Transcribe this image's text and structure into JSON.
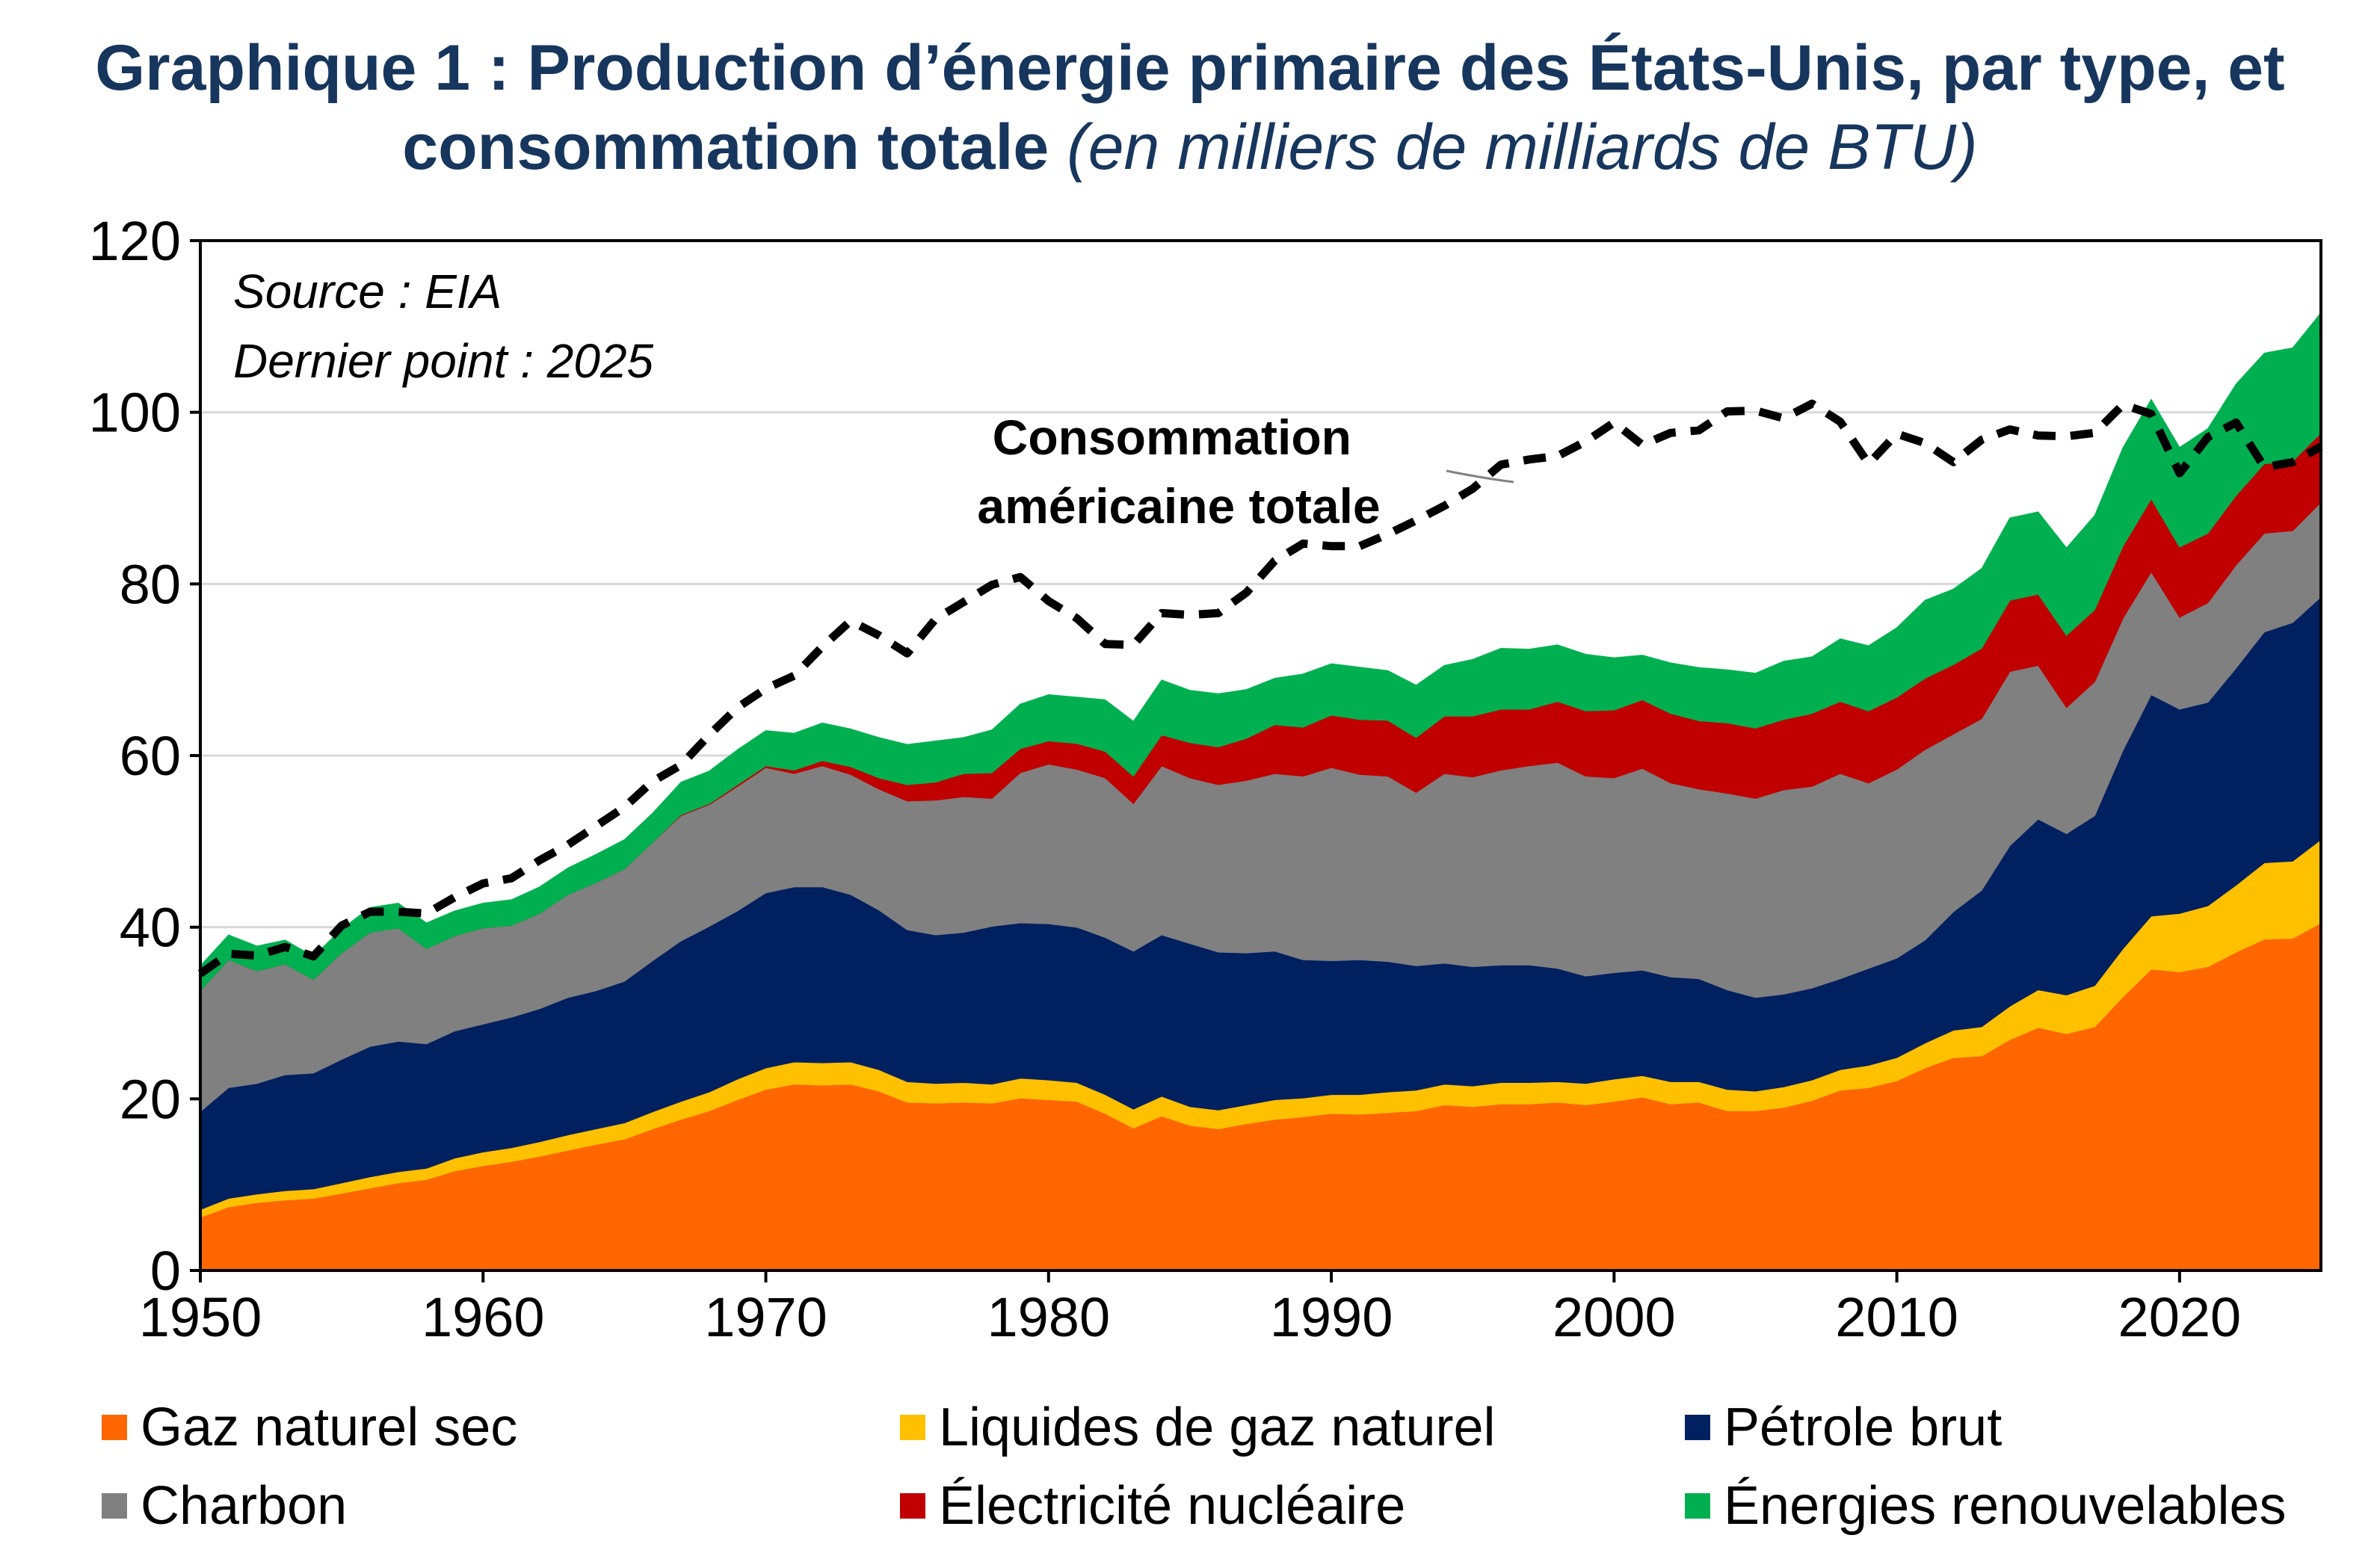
{
  "chart_data": {
    "type": "area",
    "title": "Graphique 1 : Production d’énergie primaire des États-Unis, par type, et consommation totale",
    "subtitle": "(en milliers de milliards de BTU)",
    "source_note": "Source : EIA",
    "last_point_note": "Dernier point : 2025",
    "annotation": "Consommation américaine totale",
    "xlim": [
      1950,
      2025
    ],
    "ylim": [
      0,
      120
    ],
    "x_ticks": [
      1950,
      1960,
      1970,
      1980,
      1990,
      2000,
      2010,
      2020
    ],
    "y_ticks": [
      0,
      20,
      40,
      60,
      80,
      100,
      120
    ],
    "grid": "horizontal",
    "legend_position": "bottom",
    "stacked": true,
    "x": [
      1950,
      1951,
      1952,
      1953,
      1954,
      1955,
      1956,
      1957,
      1958,
      1959,
      1960,
      1961,
      1962,
      1963,
      1964,
      1965,
      1966,
      1967,
      1968,
      1969,
      1970,
      1971,
      1972,
      1973,
      1974,
      1975,
      1976,
      1977,
      1978,
      1979,
      1980,
      1981,
      1982,
      1983,
      1984,
      1985,
      1986,
      1987,
      1988,
      1989,
      1990,
      1991,
      1992,
      1993,
      1994,
      1995,
      1996,
      1997,
      1998,
      1999,
      2000,
      2001,
      2002,
      2003,
      2004,
      2005,
      2006,
      2007,
      2008,
      2009,
      2010,
      2011,
      2012,
      2013,
      2014,
      2015,
      2016,
      2017,
      2018,
      2019,
      2020,
      2021,
      2022,
      2023,
      2024,
      2025
    ],
    "series": [
      {
        "name": "Gaz naturel sec",
        "color": "#ff6600",
        "values": [
          6.2,
          7.4,
          7.9,
          8.2,
          8.4,
          9.0,
          9.6,
          10.2,
          10.6,
          11.6,
          12.2,
          12.7,
          13.3,
          14.0,
          14.7,
          15.3,
          16.5,
          17.6,
          18.6,
          19.9,
          21.1,
          21.7,
          21.6,
          21.7,
          20.9,
          19.6,
          19.5,
          19.6,
          19.5,
          20.1,
          19.9,
          19.7,
          18.3,
          16.6,
          18.0,
          16.9,
          16.5,
          17.1,
          17.6,
          17.9,
          18.3,
          18.2,
          18.4,
          18.6,
          19.3,
          19.1,
          19.4,
          19.4,
          19.6,
          19.3,
          19.7,
          20.2,
          19.4,
          19.6,
          18.6,
          18.6,
          19.0,
          19.8,
          21.0,
          21.3,
          22.1,
          23.6,
          24.8,
          25.0,
          26.9,
          28.3,
          27.6,
          28.4,
          31.9,
          35.1,
          34.8,
          35.4,
          37.1,
          38.6,
          38.7,
          40.5
        ]
      },
      {
        "name": "Liquides de gaz naturel",
        "color": "#ffc000",
        "values": [
          0.9,
          1.0,
          1.0,
          1.1,
          1.1,
          1.2,
          1.3,
          1.3,
          1.3,
          1.5,
          1.6,
          1.6,
          1.7,
          1.8,
          1.8,
          1.9,
          2.0,
          2.1,
          2.2,
          2.4,
          2.5,
          2.6,
          2.6,
          2.6,
          2.5,
          2.4,
          2.3,
          2.3,
          2.2,
          2.3,
          2.3,
          2.2,
          2.2,
          2.2,
          2.3,
          2.2,
          2.2,
          2.2,
          2.3,
          2.2,
          2.2,
          2.3,
          2.4,
          2.4,
          2.4,
          2.4,
          2.5,
          2.5,
          2.4,
          2.5,
          2.6,
          2.5,
          2.6,
          2.4,
          2.5,
          2.3,
          2.4,
          2.4,
          2.4,
          2.6,
          2.7,
          2.9,
          3.2,
          3.4,
          3.9,
          4.4,
          4.5,
          4.8,
          5.6,
          6.2,
          6.8,
          7.1,
          7.8,
          8.9,
          9.0,
          9.7
        ]
      },
      {
        "name": "Pétrole brut",
        "color": "#002060",
        "values": [
          11.4,
          12.9,
          12.9,
          13.5,
          13.5,
          14.4,
          15.2,
          15.2,
          14.5,
          14.8,
          14.9,
          15.2,
          15.5,
          16.0,
          16.1,
          16.5,
          17.6,
          18.7,
          19.3,
          19.6,
          20.4,
          20.4,
          20.5,
          19.5,
          18.6,
          17.7,
          17.3,
          17.5,
          18.4,
          18.1,
          18.2,
          18.1,
          18.3,
          18.4,
          18.8,
          19.0,
          18.4,
          17.7,
          17.3,
          16.1,
          15.6,
          15.7,
          15.2,
          14.5,
          14.1,
          13.9,
          13.7,
          13.7,
          13.2,
          12.5,
          12.4,
          12.3,
          12.2,
          12.0,
          11.6,
          10.9,
          10.8,
          10.7,
          10.6,
          11.3,
          11.6,
          12.0,
          13.8,
          15.9,
          18.7,
          19.9,
          18.8,
          19.8,
          23.1,
          25.8,
          23.8,
          23.7,
          25.3,
          26.9,
          27.8,
          28.3
        ]
      },
      {
        "name": "Charbon",
        "color": "#808080",
        "values": [
          14.1,
          14.9,
          13.1,
          12.9,
          10.9,
          12.4,
          13.3,
          13.2,
          11.1,
          11.1,
          11.2,
          10.7,
          11.1,
          12.0,
          12.6,
          13.1,
          13.8,
          14.6,
          14.2,
          14.5,
          14.6,
          13.2,
          14.1,
          14.0,
          14.1,
          15.0,
          15.7,
          15.8,
          14.9,
          17.5,
          18.6,
          18.4,
          18.6,
          17.2,
          19.7,
          19.3,
          19.5,
          20.1,
          20.7,
          21.4,
          22.5,
          21.6,
          21.6,
          20.2,
          22.1,
          22.1,
          22.7,
          23.2,
          24.0,
          23.3,
          22.7,
          23.5,
          22.6,
          22.1,
          22.9,
          23.2,
          23.8,
          23.5,
          23.9,
          21.6,
          22.0,
          22.2,
          20.7,
          20.0,
          20.3,
          17.9,
          14.7,
          15.6,
          15.4,
          14.3,
          10.7,
          11.6,
          12.0,
          11.5,
          10.7,
          11.0
        ]
      },
      {
        "name": "Électricité nucléaire",
        "color": "#c00000",
        "values": [
          0,
          0,
          0,
          0,
          0,
          0,
          0,
          0,
          0,
          0,
          0,
          0,
          0,
          0,
          0,
          0,
          0,
          0.1,
          0.1,
          0.2,
          0.2,
          0.4,
          0.6,
          0.9,
          1.3,
          1.9,
          2.1,
          2.7,
          3.0,
          2.8,
          2.7,
          3.0,
          3.1,
          3.2,
          3.6,
          4.1,
          4.4,
          4.9,
          5.7,
          5.7,
          6.1,
          6.4,
          6.5,
          6.4,
          6.7,
          7.1,
          7.1,
          6.6,
          7.1,
          7.6,
          7.9,
          8.0,
          8.1,
          7.96,
          8.2,
          8.2,
          8.2,
          8.5,
          8.4,
          8.4,
          8.4,
          8.3,
          8.1,
          8.2,
          8.3,
          8.3,
          8.4,
          8.4,
          8.4,
          8.5,
          8.2,
          8.1,
          8.1,
          8.1,
          8.1,
          8.1
        ]
      },
      {
        "name": "Énergies renouvelables",
        "color": "#00b050",
        "values": [
          2.9,
          2.9,
          2.9,
          2.8,
          2.7,
          2.8,
          2.9,
          2.9,
          3.0,
          2.9,
          2.9,
          3.0,
          3.1,
          3.1,
          3.3,
          3.4,
          3.4,
          3.8,
          3.8,
          4.1,
          4.1,
          4.3,
          4.4,
          4.4,
          4.7,
          4.7,
          4.8,
          4.2,
          5.0,
          5.2,
          5.4,
          5.4,
          6.0,
          6.4,
          6.4,
          6.1,
          6.2,
          5.7,
          5.4,
          6.2,
          6.0,
          6.1,
          5.8,
          6.1,
          5.9,
          6.6,
          7.1,
          7.0,
          6.6,
          6.6,
          6.1,
          5.2,
          5.9,
          6.2,
          6.2,
          6.4,
          6.8,
          6.6,
          7.3,
          7.6,
          8.1,
          9.1,
          8.8,
          9.3,
          9.6,
          9.6,
          10.2,
          11.0,
          11.5,
          11.6,
          11.6,
          12.2,
          13.0,
          12.9,
          13.2,
          14.0
        ]
      }
    ],
    "line": {
      "name": "Consommation américaine totale",
      "color": "#000000",
      "style": "dashed",
      "values": [
        34.6,
        36.9,
        36.7,
        37.7,
        36.6,
        40.2,
        41.8,
        41.8,
        41.6,
        43.5,
        45.1,
        45.7,
        47.8,
        49.6,
        51.8,
        54.0,
        57.0,
        58.9,
        62.4,
        65.6,
        67.8,
        69.3,
        72.7,
        75.7,
        74.0,
        71.9,
        75.9,
        77.9,
        79.9,
        80.8,
        78.0,
        76.0,
        73.0,
        72.9,
        76.6,
        76.4,
        76.6,
        79.0,
        82.7,
        84.7,
        84.4,
        84.4,
        85.8,
        87.4,
        89.1,
        91.1,
        93.9,
        94.5,
        94.9,
        96.6,
        98.8,
        96.2,
        97.6,
        97.9,
        100.1,
        100.2,
        99.3,
        101.0,
        98.9,
        94.0,
        97.5,
        96.4,
        94.2,
        96.8,
        98.0,
        97.3,
        97.2,
        97.6,
        100.9,
        99.8,
        92.9,
        97.1,
        98.8,
        93.6,
        94.2,
        96.0
      ]
    }
  },
  "legend": {
    "items": [
      {
        "label": "Gaz naturel sec",
        "color": "#ff6600"
      },
      {
        "label": "Liquides de gaz naturel",
        "color": "#ffc000"
      },
      {
        "label": "Pétrole brut",
        "color": "#002060"
      },
      {
        "label": "Charbon",
        "color": "#808080"
      },
      {
        "label": "Électricité nucléaire",
        "color": "#c00000"
      },
      {
        "label": "Énergies renouvelables",
        "color": "#00b050"
      }
    ]
  }
}
